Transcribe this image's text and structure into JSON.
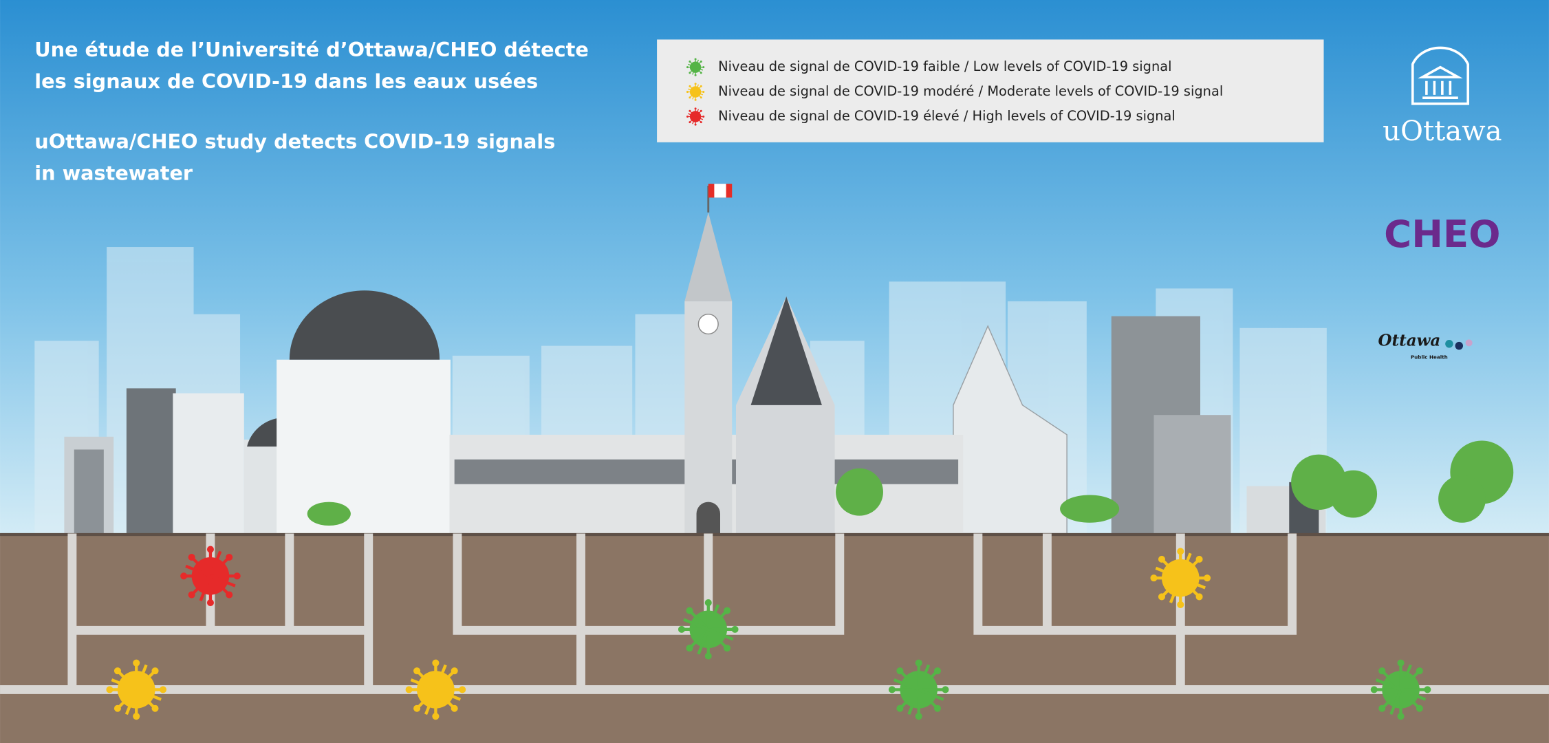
{
  "title_fr": [
    "Une étude de l’Université d’Ottawa/CHEO détecte",
    "les signaux de COVID-19 dans les eaux usées"
  ],
  "title_en": [
    "uOttawa/CHEO study detects COVID-19 signals",
    "in wastewater"
  ],
  "legend": [
    "Niveau de signal de COVID-19 faible / Low levels of COVID-19 signal",
    "Niveau de signal de COVID-19 modéré / Moderate levels of COVID-19 signal",
    "Niveau de signal de COVID-19 élevé / High levels of COVID-19 signal"
  ],
  "logos": {
    "uottawa": "uOttawa",
    "cheo": "CHEO",
    "ottawa": "Ottawa",
    "public_health": "Public Health"
  }
}
